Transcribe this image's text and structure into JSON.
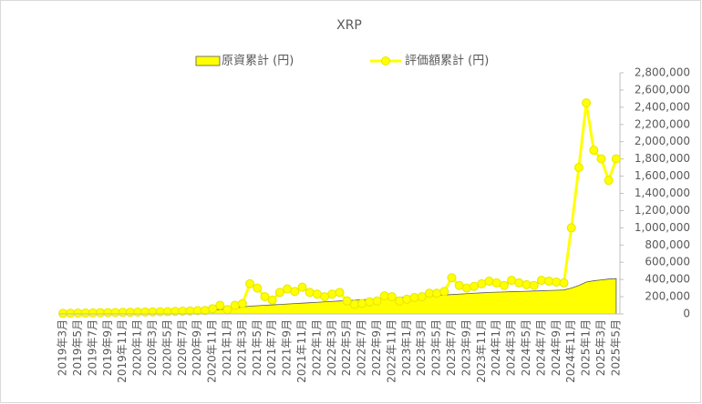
{
  "chart_data": {
    "type": "area-line",
    "title": "XRP",
    "categories": [
      "2019年3月",
      null,
      "2019年5月",
      null,
      "2019年7月",
      null,
      "2019年9月",
      null,
      "2019年11月",
      null,
      "2020年1月",
      null,
      "2020年3月",
      null,
      "2020年5月",
      null,
      "2020年7月",
      null,
      "2020年9月",
      null,
      "2020年11月",
      null,
      "2021年1月",
      null,
      "2021年3月",
      null,
      "2021年5月",
      null,
      "2021年7月",
      null,
      "2021年9月",
      null,
      "2021年11月",
      null,
      "2022年1月",
      null,
      "2022年3月",
      null,
      "2022年5月",
      null,
      "2022年7月",
      null,
      "2022年9月",
      null,
      "2022年11月",
      null,
      "2023年1月",
      null,
      "2023年3月",
      null,
      "2023年5月",
      null,
      "2023年7月",
      null,
      "2023年9月",
      null,
      "2023年11月",
      null,
      "2024年1月",
      null,
      "2024年3月",
      null,
      "2024年5月",
      null,
      "2024年7月",
      null,
      "2024年9月",
      null,
      "2024年11月",
      null,
      "2025年1月",
      null,
      "2025年3月",
      null,
      "2025年5月"
    ],
    "series": [
      {
        "name": "原資累計 (円)",
        "kind": "area",
        "color": "#ffff00",
        "values": [
          5000,
          7000,
          9000,
          11000,
          13000,
          15000,
          17000,
          19000,
          21000,
          23000,
          25000,
          27000,
          29000,
          31000,
          33000,
          35000,
          37000,
          39000,
          41000,
          43000,
          45000,
          50000,
          60000,
          70000,
          80000,
          90000,
          95000,
          100000,
          105000,
          110000,
          115000,
          120000,
          125000,
          130000,
          135000,
          140000,
          145000,
          150000,
          155000,
          160000,
          165000,
          170000,
          175000,
          180000,
          185000,
          190000,
          195000,
          200000,
          205000,
          210000,
          215000,
          220000,
          225000,
          230000,
          235000,
          240000,
          245000,
          250000,
          252000,
          255000,
          258000,
          260000,
          263000,
          266000,
          269000,
          272000,
          275000,
          278000,
          300000,
          330000,
          370000,
          385000,
          395000,
          405000,
          410000
        ]
      },
      {
        "name": "評価額累計 (円)",
        "kind": "line",
        "color": "#ffff00",
        "values": [
          6000,
          8000,
          9000,
          10000,
          12000,
          14000,
          15000,
          16000,
          18000,
          19000,
          21000,
          22000,
          24000,
          25000,
          26000,
          29000,
          32000,
          35000,
          38000,
          40000,
          60000,
          100000,
          50000,
          100000,
          120000,
          350000,
          300000,
          200000,
          160000,
          250000,
          290000,
          260000,
          310000,
          250000,
          230000,
          200000,
          230000,
          250000,
          150000,
          110000,
          120000,
          140000,
          150000,
          210000,
          200000,
          150000,
          170000,
          190000,
          200000,
          240000,
          240000,
          260000,
          420000,
          330000,
          300000,
          320000,
          350000,
          380000,
          360000,
          330000,
          390000,
          360000,
          340000,
          330000,
          390000,
          380000,
          370000,
          360000,
          1000000,
          1700000,
          2450000,
          1900000,
          1800000,
          1550000,
          1800000
        ]
      }
    ],
    "ylim": [
      0,
      2800000
    ],
    "yticks": [
      0,
      {
        "value": 200000,
        "label": "200,000"
      },
      {
        "value": 400000,
        "label": "400,000"
      },
      {
        "value": 600000,
        "label": "600,000"
      },
      {
        "value": 800000,
        "label": "800,000"
      },
      {
        "value": 1000000,
        "label": "1,000,000"
      },
      {
        "value": 1200000,
        "label": "1,200,000"
      },
      {
        "value": 1400000,
        "label": "1,400,000"
      },
      {
        "value": 1600000,
        "label": "1,600,000"
      },
      {
        "value": 1800000,
        "label": "1,800,000"
      },
      {
        "value": 2000000,
        "label": "2,000,000"
      },
      {
        "value": 2200000,
        "label": "2,200,000"
      },
      {
        "value": 2400000,
        "label": "2,400,000"
      },
      {
        "value": 2600000,
        "label": "2,600,000"
      },
      {
        "value": 2800000,
        "label": "2,800,000"
      }
    ],
    "y_axis_side": "right",
    "grid": false,
    "legend": "top"
  }
}
